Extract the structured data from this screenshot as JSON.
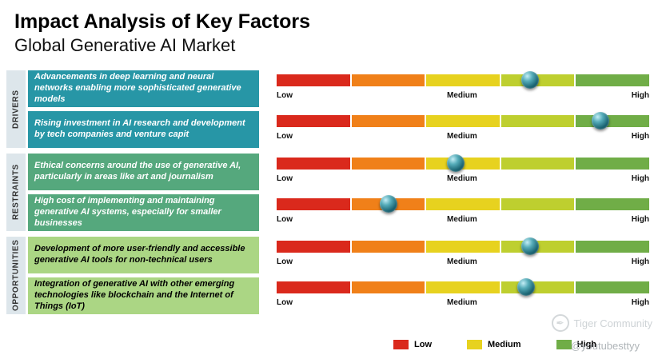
{
  "header": {
    "title": "Impact Analysis of Key Factors",
    "subtitle": "Global Generative AI Market"
  },
  "scale_labels": {
    "low": "Low",
    "medium": "Medium",
    "high": "High"
  },
  "bar_colors": [
    "#da291c",
    "#f08019",
    "#e7d21f",
    "#becf2f",
    "#70ad47"
  ],
  "marker_color": "#17606f",
  "groups": [
    {
      "name": "DRIVERS",
      "box_color": "#2796a6",
      "text_color": "#ffffff",
      "rows": [
        {
          "label": "Advancements in deep learning and neural networks enabling more sophisticated generative models",
          "impact_pct": 68
        },
        {
          "label": "Rising investment in AI research and development by tech companies and venture capit",
          "impact_pct": 87
        }
      ]
    },
    {
      "name": "RESTRAINTS",
      "box_color": "#55a87d",
      "text_color": "#ffffff",
      "rows": [
        {
          "label": "Ethical concerns around the use of generative AI, particularly in areas like art and journalism",
          "impact_pct": 48
        },
        {
          "label": "High cost of implementing and maintaining generative AI systems, especially for smaller businesses",
          "impact_pct": 30
        }
      ]
    },
    {
      "name": "OPPORTUNITIES",
      "box_color": "#abd684",
      "text_color": "#000000",
      "rows": [
        {
          "label": "Development of more user-friendly and accessible generative AI tools for non-technical users",
          "impact_pct": 68
        },
        {
          "label": "Integration of generative AI with other emerging technologies like blockchain and the Internet of Things (IoT)",
          "impact_pct": 67
        }
      ]
    }
  ],
  "legend": [
    {
      "label": "Low",
      "color": "#da291c"
    },
    {
      "label": "Medium",
      "color": "#e7d21f"
    },
    {
      "label": "High",
      "color": "#70ad47"
    }
  ],
  "watermark": {
    "brand": "Tiger Community",
    "handle": "@youtubesttyy",
    "icon": "feather-icon"
  }
}
